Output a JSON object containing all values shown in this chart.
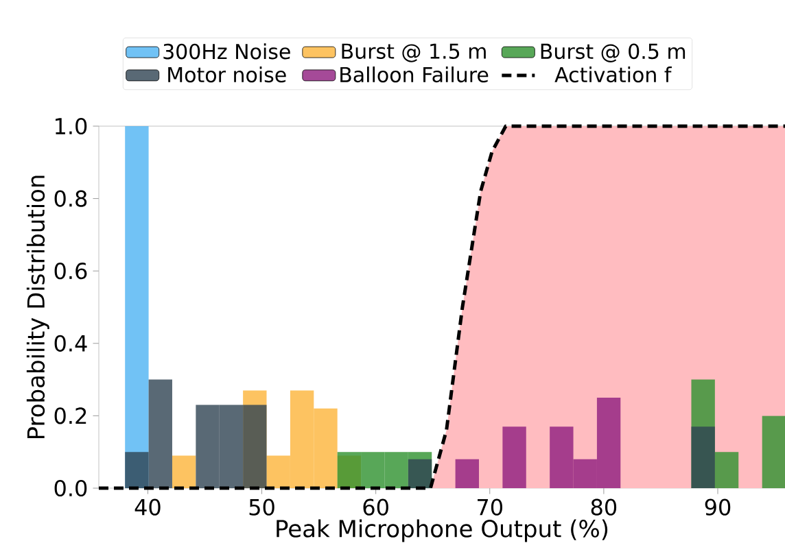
{
  "chart_data": {
    "type": "histogram",
    "xlabel": "Peak Microphone Output (%)",
    "ylabel": "Probability Distribution",
    "xlim": [
      35.7,
      95.9
    ],
    "ylim": [
      0,
      1
    ],
    "xticks": [
      40,
      50,
      60,
      70,
      80,
      90
    ],
    "yticks": [
      {
        "value": 0,
        "label": "0.0"
      },
      {
        "value": 0.2,
        "label": "0.2"
      },
      {
        "value": 0.4,
        "label": "0.4"
      },
      {
        "value": 0.6,
        "label": "0.6"
      },
      {
        "value": 0.8,
        "label": "0.8"
      },
      {
        "value": 1,
        "label": "1.0"
      }
    ],
    "bins": [
      38.0,
      40.07,
      42.14,
      44.21,
      46.28,
      48.35,
      50.42,
      52.49,
      54.56,
      56.63,
      58.7,
      60.77,
      62.84,
      64.91,
      66.98,
      69.05,
      71.12,
      73.19,
      75.26,
      77.33,
      79.4,
      81.47,
      87.68,
      89.75,
      91.82,
      93.89,
      95.9
    ],
    "legend": "top",
    "grid": false,
    "series": [
      {
        "name": "300Hz Noise",
        "color": "#4db3f3",
        "values": [
          1,
          0,
          0,
          0,
          0,
          0,
          0,
          0,
          0,
          0,
          0,
          0,
          0,
          0,
          0,
          0,
          0,
          0,
          0,
          0,
          0,
          0,
          0,
          0,
          0,
          0
        ]
      },
      {
        "name": "Burst @ 1.5 m",
        "color": "#fdb43a",
        "values": [
          0,
          0,
          0.09,
          0,
          0,
          0.27,
          0.09,
          0.27,
          0.22,
          0.09,
          0,
          0,
          0,
          0,
          0,
          0,
          0,
          0,
          0,
          0,
          0,
          0,
          0,
          0,
          0,
          0
        ]
      },
      {
        "name": "Burst @ 0.5 m",
        "color": "#2e912e",
        "values": [
          0,
          0,
          0,
          0,
          0,
          0,
          0,
          0,
          0,
          0.1,
          0.1,
          0.1,
          0.1,
          0,
          0,
          0,
          0,
          0,
          0,
          0,
          0,
          0,
          0.3,
          0.1,
          0,
          0.2
        ]
      },
      {
        "name": "Motor noise",
        "color": "#2f4352",
        "values": [
          0.1,
          0.3,
          0,
          0.23,
          0.23,
          0.23,
          0,
          0,
          0,
          0,
          0,
          0,
          0.08,
          0,
          0,
          0,
          0,
          0,
          0,
          0,
          0,
          0,
          0.17,
          0,
          0,
          0
        ]
      },
      {
        "name": "Balloon Failure",
        "color": "#8e1d7e",
        "values": [
          0,
          0,
          0,
          0,
          0,
          0,
          0,
          0,
          0,
          0,
          0,
          0,
          0,
          0,
          0.08,
          0,
          0.17,
          0,
          0.17,
          0.08,
          0.25,
          0,
          0,
          0,
          0,
          0
        ]
      },
      {
        "name": "Activation f",
        "type": "area",
        "color": "#ffbcc0",
        "line_style": "dashed",
        "x": [
          35.7,
          64.8,
          66.2,
          67.6,
          69.2,
          70.2,
          71.4,
          95.9
        ],
        "values": [
          0,
          0,
          0.16,
          0.5,
          0.82,
          0.93,
          1,
          1
        ]
      }
    ]
  }
}
